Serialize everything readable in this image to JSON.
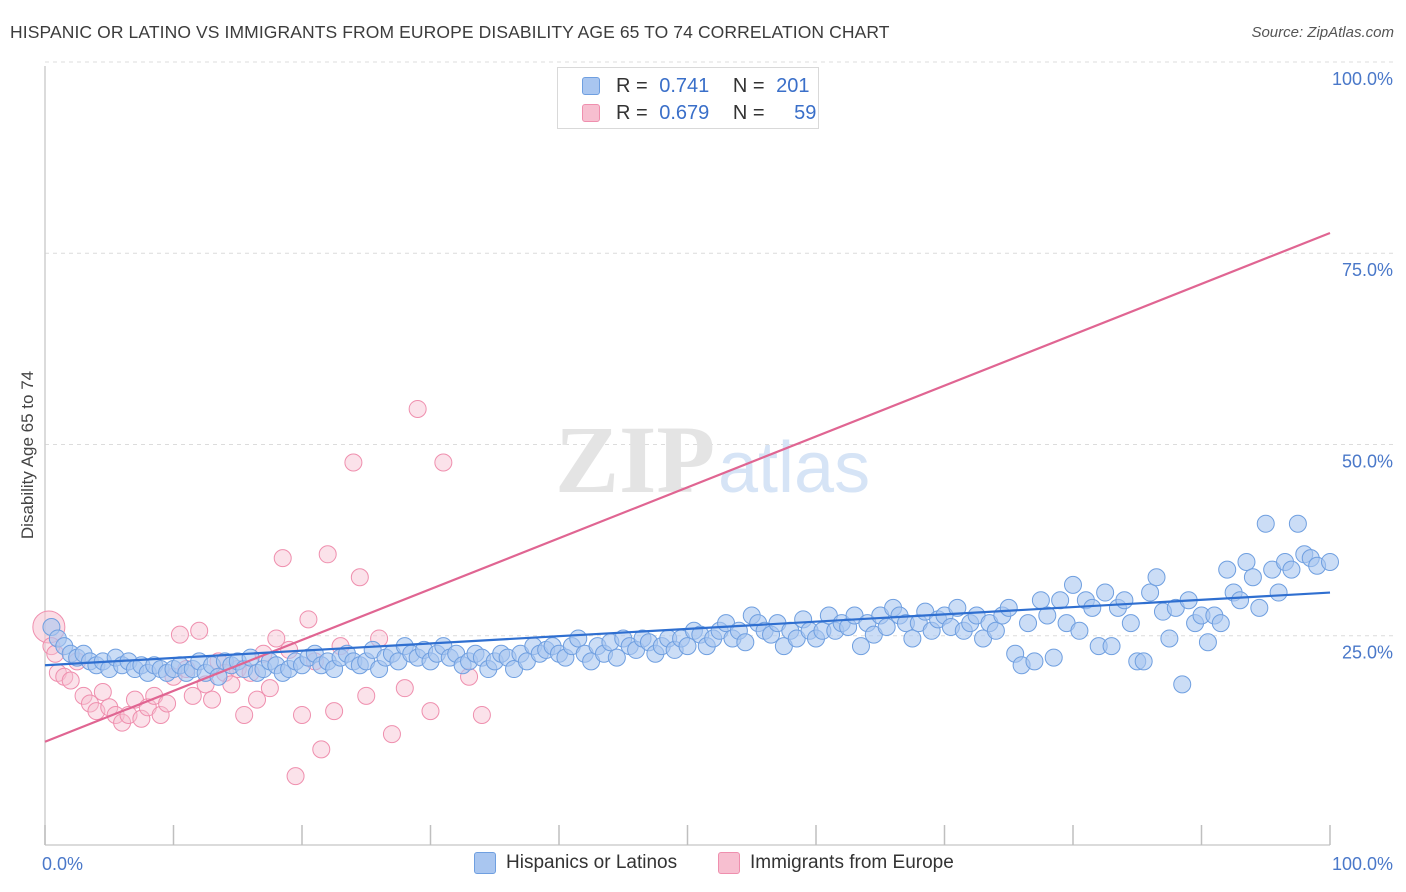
{
  "title": "HISPANIC OR LATINO VS IMMIGRANTS FROM EUROPE DISABILITY AGE 65 TO 74 CORRELATION CHART",
  "source": "Source: ZipAtlas.com",
  "watermark": {
    "zip": "ZIP",
    "atlas": "atlas"
  },
  "legend_top": {
    "rows": [
      {
        "r_label": "R =",
        "r_value": "0.741",
        "n_label": "N =",
        "n_value": "201"
      },
      {
        "r_label": "R =",
        "r_value": "0.679",
        "n_label": "N =",
        "n_value": "59"
      }
    ]
  },
  "legend_bottom": {
    "series1": "Hispanics or Latinos",
    "series2": "Immigrants from Europe"
  },
  "colors": {
    "blue_fill": "#a9c6f0",
    "blue_stroke": "#6f9fe0",
    "blue_line": "#2f6fd0",
    "pink_fill": "#f7bfd0",
    "pink_stroke": "#ef8fae",
    "pink_line": "#e06592",
    "tick_text": "#4a78c9",
    "grid": "#dcdcdc"
  },
  "chart_data": {
    "type": "scatter",
    "title": "HISPANIC OR LATINO VS IMMIGRANTS FROM EUROPE DISABILITY AGE 65 TO 74 CORRELATION CHART",
    "xlabel": "",
    "ylabel": "Disability Age 65 to 74",
    "xlim": [
      0,
      100
    ],
    "ylim": [
      0,
      100
    ],
    "x_tick_labels": [
      "0.0%",
      "100.0%"
    ],
    "y_tick_labels": [
      "25.0%",
      "50.0%",
      "75.0%",
      "100.0%"
    ],
    "y_ticks": [
      25,
      50,
      75,
      100
    ],
    "legend_position": "top-center",
    "series": [
      {
        "name": "Hispanics or Latinos",
        "r": 0.741,
        "n": 201,
        "trend": {
          "x": [
            0,
            100
          ],
          "y": [
            23.5,
            33.0
          ]
        },
        "points": [
          [
            0.5,
            28.5
          ],
          [
            1,
            27
          ],
          [
            1.5,
            26
          ],
          [
            2,
            25
          ],
          [
            2.5,
            24.5
          ],
          [
            3,
            25
          ],
          [
            3.5,
            24
          ],
          [
            4,
            23.5
          ],
          [
            4.5,
            24
          ],
          [
            5,
            23
          ],
          [
            5.5,
            24.5
          ],
          [
            6,
            23.5
          ],
          [
            6.5,
            24
          ],
          [
            7,
            23
          ],
          [
            7.5,
            23.5
          ],
          [
            8,
            22.5
          ],
          [
            8.5,
            23.5
          ],
          [
            9,
            23
          ],
          [
            9.5,
            22.5
          ],
          [
            10,
            23
          ],
          [
            10.5,
            23.5
          ],
          [
            11,
            22.5
          ],
          [
            11.5,
            23
          ],
          [
            12,
            24
          ],
          [
            12.5,
            22.5
          ],
          [
            13,
            23.5
          ],
          [
            13.5,
            22
          ],
          [
            14,
            24
          ],
          [
            14.5,
            23.5
          ],
          [
            15,
            24
          ],
          [
            15.5,
            23
          ],
          [
            16,
            24.5
          ],
          [
            16.5,
            22.5
          ],
          [
            17,
            23
          ],
          [
            17.5,
            24
          ],
          [
            18,
            23.5
          ],
          [
            18.5,
            22.5
          ],
          [
            19,
            23
          ],
          [
            19.5,
            24
          ],
          [
            20,
            23.5
          ],
          [
            20.5,
            24.5
          ],
          [
            21,
            25
          ],
          [
            21.5,
            23.5
          ],
          [
            22,
            24
          ],
          [
            22.5,
            23
          ],
          [
            23,
            24.5
          ],
          [
            23.5,
            25
          ],
          [
            24,
            24
          ],
          [
            24.5,
            23.5
          ],
          [
            25,
            24
          ],
          [
            25.5,
            25.5
          ],
          [
            26,
            23
          ],
          [
            26.5,
            24.5
          ],
          [
            27,
            25
          ],
          [
            27.5,
            24
          ],
          [
            28,
            26
          ],
          [
            28.5,
            25
          ],
          [
            29,
            24.5
          ],
          [
            29.5,
            25.5
          ],
          [
            30,
            24
          ],
          [
            30.5,
            25
          ],
          [
            31,
            26
          ],
          [
            31.5,
            24.5
          ],
          [
            32,
            25
          ],
          [
            32.5,
            23.5
          ],
          [
            33,
            24
          ],
          [
            33.5,
            25
          ],
          [
            34,
            24.5
          ],
          [
            34.5,
            23
          ],
          [
            35,
            24
          ],
          [
            35.5,
            25
          ],
          [
            36,
            24.5
          ],
          [
            36.5,
            23
          ],
          [
            37,
            25
          ],
          [
            37.5,
            24
          ],
          [
            38,
            26
          ],
          [
            38.5,
            25
          ],
          [
            39,
            25.5
          ],
          [
            39.5,
            26
          ],
          [
            40,
            25
          ],
          [
            40.5,
            24.5
          ],
          [
            41,
            26
          ],
          [
            41.5,
            27
          ],
          [
            42,
            25
          ],
          [
            42.5,
            24
          ],
          [
            43,
            26
          ],
          [
            43.5,
            25
          ],
          [
            44,
            26.5
          ],
          [
            44.5,
            24.5
          ],
          [
            45,
            27
          ],
          [
            45.5,
            26
          ],
          [
            46,
            25.5
          ],
          [
            46.5,
            27
          ],
          [
            47,
            26.5
          ],
          [
            47.5,
            25
          ],
          [
            48,
            26
          ],
          [
            48.5,
            27
          ],
          [
            49,
            25.5
          ],
          [
            49.5,
            27
          ],
          [
            50,
            26
          ],
          [
            50.5,
            28
          ],
          [
            51,
            27.5
          ],
          [
            51.5,
            26
          ],
          [
            52,
            27
          ],
          [
            52.5,
            28
          ],
          [
            53,
            29
          ],
          [
            53.5,
            27
          ],
          [
            54,
            28
          ],
          [
            54.5,
            26.5
          ],
          [
            55,
            30
          ],
          [
            55.5,
            29
          ],
          [
            56,
            28
          ],
          [
            56.5,
            27.5
          ],
          [
            57,
            29
          ],
          [
            57.5,
            26
          ],
          [
            58,
            28
          ],
          [
            58.5,
            27
          ],
          [
            59,
            29.5
          ],
          [
            59.5,
            28
          ],
          [
            60,
            27
          ],
          [
            60.5,
            28
          ],
          [
            61,
            30
          ],
          [
            61.5,
            28
          ],
          [
            62,
            29
          ],
          [
            62.5,
            28.5
          ],
          [
            63,
            30
          ],
          [
            63.5,
            26
          ],
          [
            64,
            29
          ],
          [
            64.5,
            27.5
          ],
          [
            65,
            30
          ],
          [
            65.5,
            28.5
          ],
          [
            66,
            31
          ],
          [
            66.5,
            30
          ],
          [
            67,
            29
          ],
          [
            67.5,
            27
          ],
          [
            68,
            29
          ],
          [
            68.5,
            30.5
          ],
          [
            69,
            28
          ],
          [
            69.5,
            29.5
          ],
          [
            70,
            30
          ],
          [
            70.5,
            28.5
          ],
          [
            71,
            31
          ],
          [
            71.5,
            28
          ],
          [
            72,
            29
          ],
          [
            72.5,
            30
          ],
          [
            73,
            27
          ],
          [
            73.5,
            29
          ],
          [
            74,
            28
          ],
          [
            74.5,
            30
          ],
          [
            75,
            31
          ],
          [
            75.5,
            25
          ],
          [
            76,
            23.5
          ],
          [
            76.5,
            29
          ],
          [
            77,
            24
          ],
          [
            77.5,
            32
          ],
          [
            78,
            30
          ],
          [
            78.5,
            24.5
          ],
          [
            79,
            32
          ],
          [
            79.5,
            29
          ],
          [
            80,
            34
          ],
          [
            80.5,
            28
          ],
          [
            81,
            32
          ],
          [
            81.5,
            31
          ],
          [
            82,
            26
          ],
          [
            82.5,
            33
          ],
          [
            83,
            26
          ],
          [
            83.5,
            31
          ],
          [
            84,
            32
          ],
          [
            84.5,
            29
          ],
          [
            85,
            24
          ],
          [
            85.5,
            24
          ],
          [
            86,
            33
          ],
          [
            86.5,
            35
          ],
          [
            87,
            30.5
          ],
          [
            87.5,
            27
          ],
          [
            88,
            31
          ],
          [
            88.5,
            21
          ],
          [
            89,
            32
          ],
          [
            89.5,
            29
          ],
          [
            90,
            30
          ],
          [
            90.5,
            26.5
          ],
          [
            91,
            30
          ],
          [
            91.5,
            29
          ],
          [
            92,
            36
          ],
          [
            92.5,
            33
          ],
          [
            93,
            32
          ],
          [
            93.5,
            37
          ],
          [
            94,
            35
          ],
          [
            94.5,
            31
          ],
          [
            95,
            42
          ],
          [
            95.5,
            36
          ],
          [
            96,
            33
          ],
          [
            96.5,
            37
          ],
          [
            97,
            36
          ],
          [
            97.5,
            42
          ],
          [
            98,
            38
          ],
          [
            98.5,
            37.5
          ],
          [
            99,
            36.5
          ],
          [
            100,
            37
          ]
        ]
      },
      {
        "name": "Immigrants from Europe",
        "r": 0.679,
        "n": 59,
        "trend": {
          "x": [
            0,
            100
          ],
          "y": [
            13.5,
            80.0
          ]
        },
        "points": [
          [
            0.3,
            28.5
          ],
          [
            0.5,
            26
          ],
          [
            0.8,
            25
          ],
          [
            1,
            22.5
          ],
          [
            1.5,
            22
          ],
          [
            2,
            21.5
          ],
          [
            2.5,
            24
          ],
          [
            3,
            19.5
          ],
          [
            3.5,
            18.5
          ],
          [
            4,
            17.5
          ],
          [
            4.5,
            20
          ],
          [
            5,
            18
          ],
          [
            5.5,
            17
          ],
          [
            6,
            16
          ],
          [
            6.5,
            17
          ],
          [
            7,
            19
          ],
          [
            7.5,
            16.5
          ],
          [
            8,
            18
          ],
          [
            8.5,
            19.5
          ],
          [
            9,
            17
          ],
          [
            9.5,
            18.5
          ],
          [
            10,
            22
          ],
          [
            10.5,
            27.5
          ],
          [
            11,
            23
          ],
          [
            11.5,
            19.5
          ],
          [
            12,
            28
          ],
          [
            12.5,
            21
          ],
          [
            13,
            19
          ],
          [
            13.5,
            24
          ],
          [
            14,
            22.5
          ],
          [
            14.5,
            21
          ],
          [
            15,
            23
          ],
          [
            15.5,
            17
          ],
          [
            16,
            22.5
          ],
          [
            16.5,
            19
          ],
          [
            17,
            25
          ],
          [
            17.5,
            20.5
          ],
          [
            18,
            27
          ],
          [
            18.5,
            37.5
          ],
          [
            19,
            25.5
          ],
          [
            19.5,
            9
          ],
          [
            20,
            17
          ],
          [
            20.5,
            29.5
          ],
          [
            21,
            24
          ],
          [
            21.5,
            12.5
          ],
          [
            22,
            38
          ],
          [
            22.5,
            17.5
          ],
          [
            23,
            26
          ],
          [
            24,
            50
          ],
          [
            24.5,
            35
          ],
          [
            25,
            19.5
          ],
          [
            26,
            27
          ],
          [
            27,
            14.5
          ],
          [
            28,
            20.5
          ],
          [
            29,
            57
          ],
          [
            30,
            17.5
          ],
          [
            31,
            50
          ],
          [
            33,
            22
          ],
          [
            34,
            17
          ]
        ]
      }
    ]
  }
}
